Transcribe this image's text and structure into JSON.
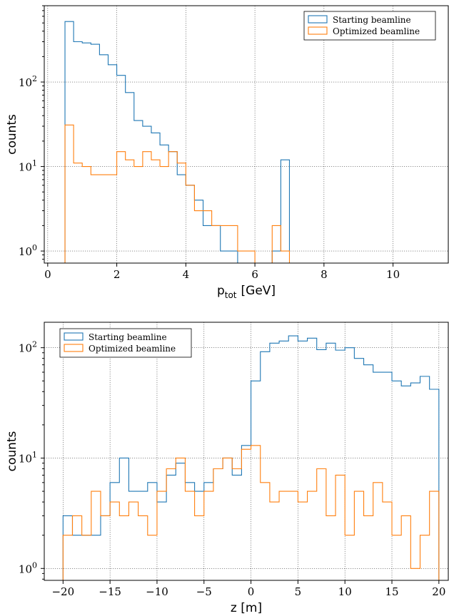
{
  "colors": {
    "starting": "#1f77b4",
    "optimized": "#ff7f0e"
  },
  "chart_data": [
    {
      "type": "histogram",
      "xlabel_main": "p",
      "xlabel_sub": "tot",
      "xlabel_unit": "[GeV]",
      "ylabel": "counts",
      "yscale": "log",
      "xlim": [
        -0.1,
        11.6
      ],
      "ylim": [
        0.72,
        800
      ],
      "xticks": [
        0,
        2,
        4,
        6,
        8,
        10
      ],
      "xtick_labels": [
        "0",
        "2",
        "4",
        "6",
        "8",
        "10"
      ],
      "yticks": [
        1,
        10,
        100
      ],
      "ytick_labels": [
        "10",
        "10",
        "10"
      ],
      "ytick_exps": [
        "0",
        "1",
        "2"
      ],
      "grid": true,
      "legend_position": "top-right",
      "bin_edges": [
        0.5,
        0.75,
        1.0,
        1.25,
        1.5,
        1.75,
        2.0,
        2.25,
        2.5,
        2.75,
        3.0,
        3.25,
        3.5,
        3.75,
        4.0,
        4.25,
        4.5,
        4.75,
        5.0,
        5.25,
        5.5,
        5.75,
        6.0,
        6.25,
        6.5,
        6.75,
        7.0
      ],
      "series": [
        {
          "name": "Starting beamline",
          "color_key": "starting",
          "values": [
            520,
            300,
            290,
            280,
            210,
            160,
            120,
            75,
            35,
            30,
            25,
            18,
            15,
            8,
            6,
            4,
            2,
            2,
            1,
            1,
            0,
            0,
            0,
            0,
            1,
            12,
            1
          ]
        },
        {
          "name": "Optimized beamline",
          "color_key": "optimized",
          "values": [
            31,
            11,
            10,
            8,
            8,
            8,
            15,
            12,
            10,
            15,
            12,
            10,
            15,
            11,
            6,
            3,
            3,
            2,
            2,
            2,
            1,
            1,
            0,
            0,
            2,
            1,
            0
          ]
        }
      ]
    },
    {
      "type": "histogram",
      "xlabel": "z [m]",
      "ylabel": "counts",
      "yscale": "log",
      "xlim": [
        -22,
        21
      ],
      "ylim": [
        0.78,
        170
      ],
      "xticks": [
        -20,
        -15,
        -10,
        -5,
        0,
        5,
        10,
        15,
        20
      ],
      "xtick_labels": [
        "−20",
        "−15",
        "−10",
        "−5",
        "0",
        "5",
        "10",
        "15",
        "20"
      ],
      "yticks": [
        1,
        10,
        100
      ],
      "ytick_labels": [
        "10",
        "10",
        "10"
      ],
      "ytick_exps": [
        "0",
        "1",
        "2"
      ],
      "grid": true,
      "legend_position": "top-left",
      "bin_edges": [
        -20,
        -19,
        -18,
        -17,
        -16,
        -15,
        -14,
        -13,
        -12,
        -11,
        -10,
        -9,
        -8,
        -7,
        -6,
        -5,
        -4,
        -3,
        -2,
        -1,
        0,
        1,
        2,
        3,
        4,
        5,
        6,
        7,
        8,
        9,
        10,
        11,
        12,
        13,
        14,
        15,
        16,
        17,
        18,
        19,
        20
      ],
      "series": [
        {
          "name": "Starting beamline",
          "color_key": "starting",
          "values": [
            3,
            2,
            2,
            2,
            3,
            6,
            10,
            5,
            5,
            6,
            4,
            7,
            9,
            6,
            5,
            6,
            8,
            10,
            7,
            13,
            50,
            92,
            110,
            115,
            128,
            115,
            122,
            96,
            110,
            95,
            100,
            80,
            70,
            60,
            60,
            50,
            45,
            48,
            55,
            42
          ]
        },
        {
          "name": "Optimized beamline",
          "color_key": "optimized",
          "values": [
            2,
            3,
            2,
            5,
            3,
            4,
            3,
            4,
            3,
            2,
            5,
            8,
            10,
            5,
            3,
            5,
            8,
            10,
            8,
            12,
            13,
            6,
            4,
            5,
            5,
            4,
            5,
            8,
            3,
            7,
            2,
            5,
            3,
            6,
            4,
            2,
            3,
            1,
            2,
            5
          ]
        }
      ]
    }
  ]
}
